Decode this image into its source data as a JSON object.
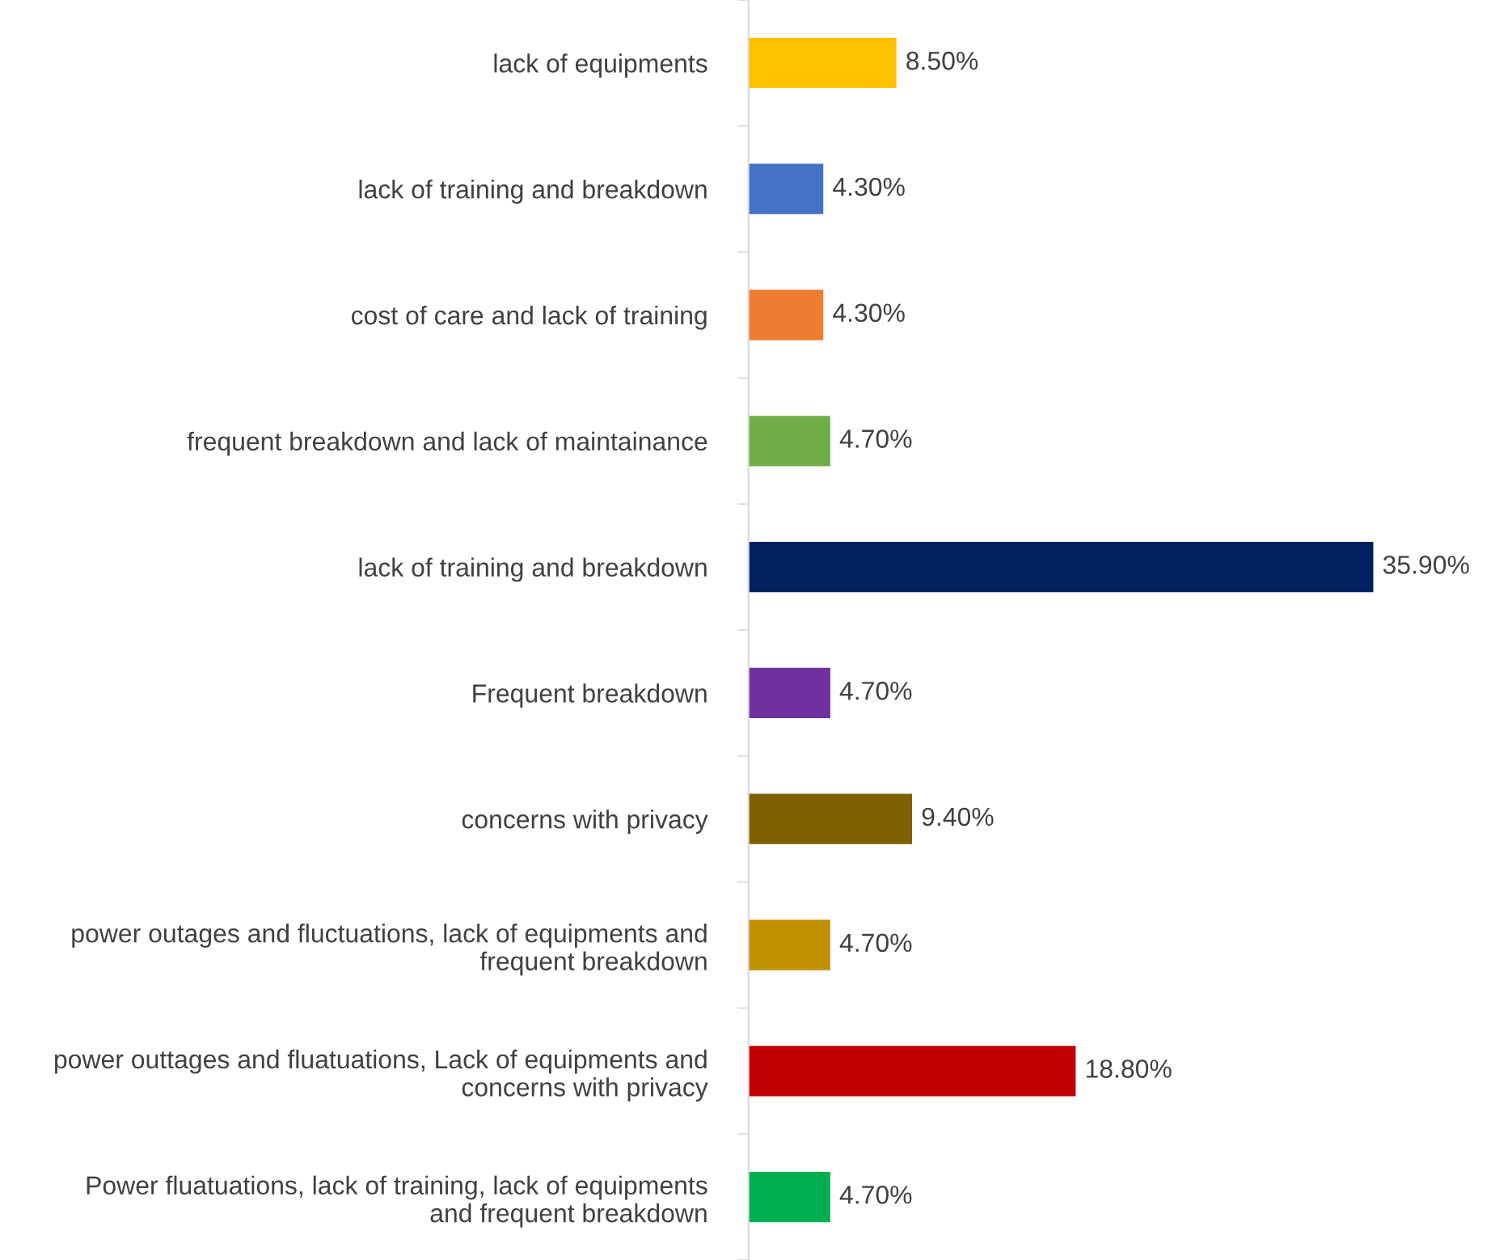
{
  "chart_data": {
    "type": "bar",
    "orientation": "horizontal",
    "data_labels": true,
    "grid": false,
    "categories": [
      "lack of equipments",
      "lack of training and breakdown",
      "cost of care and lack of training",
      "frequent breakdown and lack of maintainance",
      "lack of training and breakdown",
      "Frequent breakdown",
      "concerns with privacy",
      "power outages and fluctuations, lack of equipments and\nfrequent breakdown",
      "power outtages and fluatuations, Lack of equipments and\nconcerns with privacy",
      "Power fluatuations, lack of training, lack of equipments\nand frequent breakdown"
    ],
    "values": [
      8.5,
      4.3,
      4.3,
      4.7,
      35.9,
      4.7,
      9.4,
      4.7,
      18.8,
      4.7
    ],
    "value_labels": [
      "8.50%",
      "4.30%",
      "4.30%",
      "4.70%",
      "35.90%",
      "4.70%",
      "9.40%",
      "4.70%",
      "18.80%",
      "4.70%"
    ],
    "colors": [
      "#ffc000",
      "#4472c4",
      "#ed7d31",
      "#70ad47",
      "#002060",
      "#7030a0",
      "#7f6000",
      "#bf9000",
      "#c00000",
      "#00b050"
    ]
  }
}
